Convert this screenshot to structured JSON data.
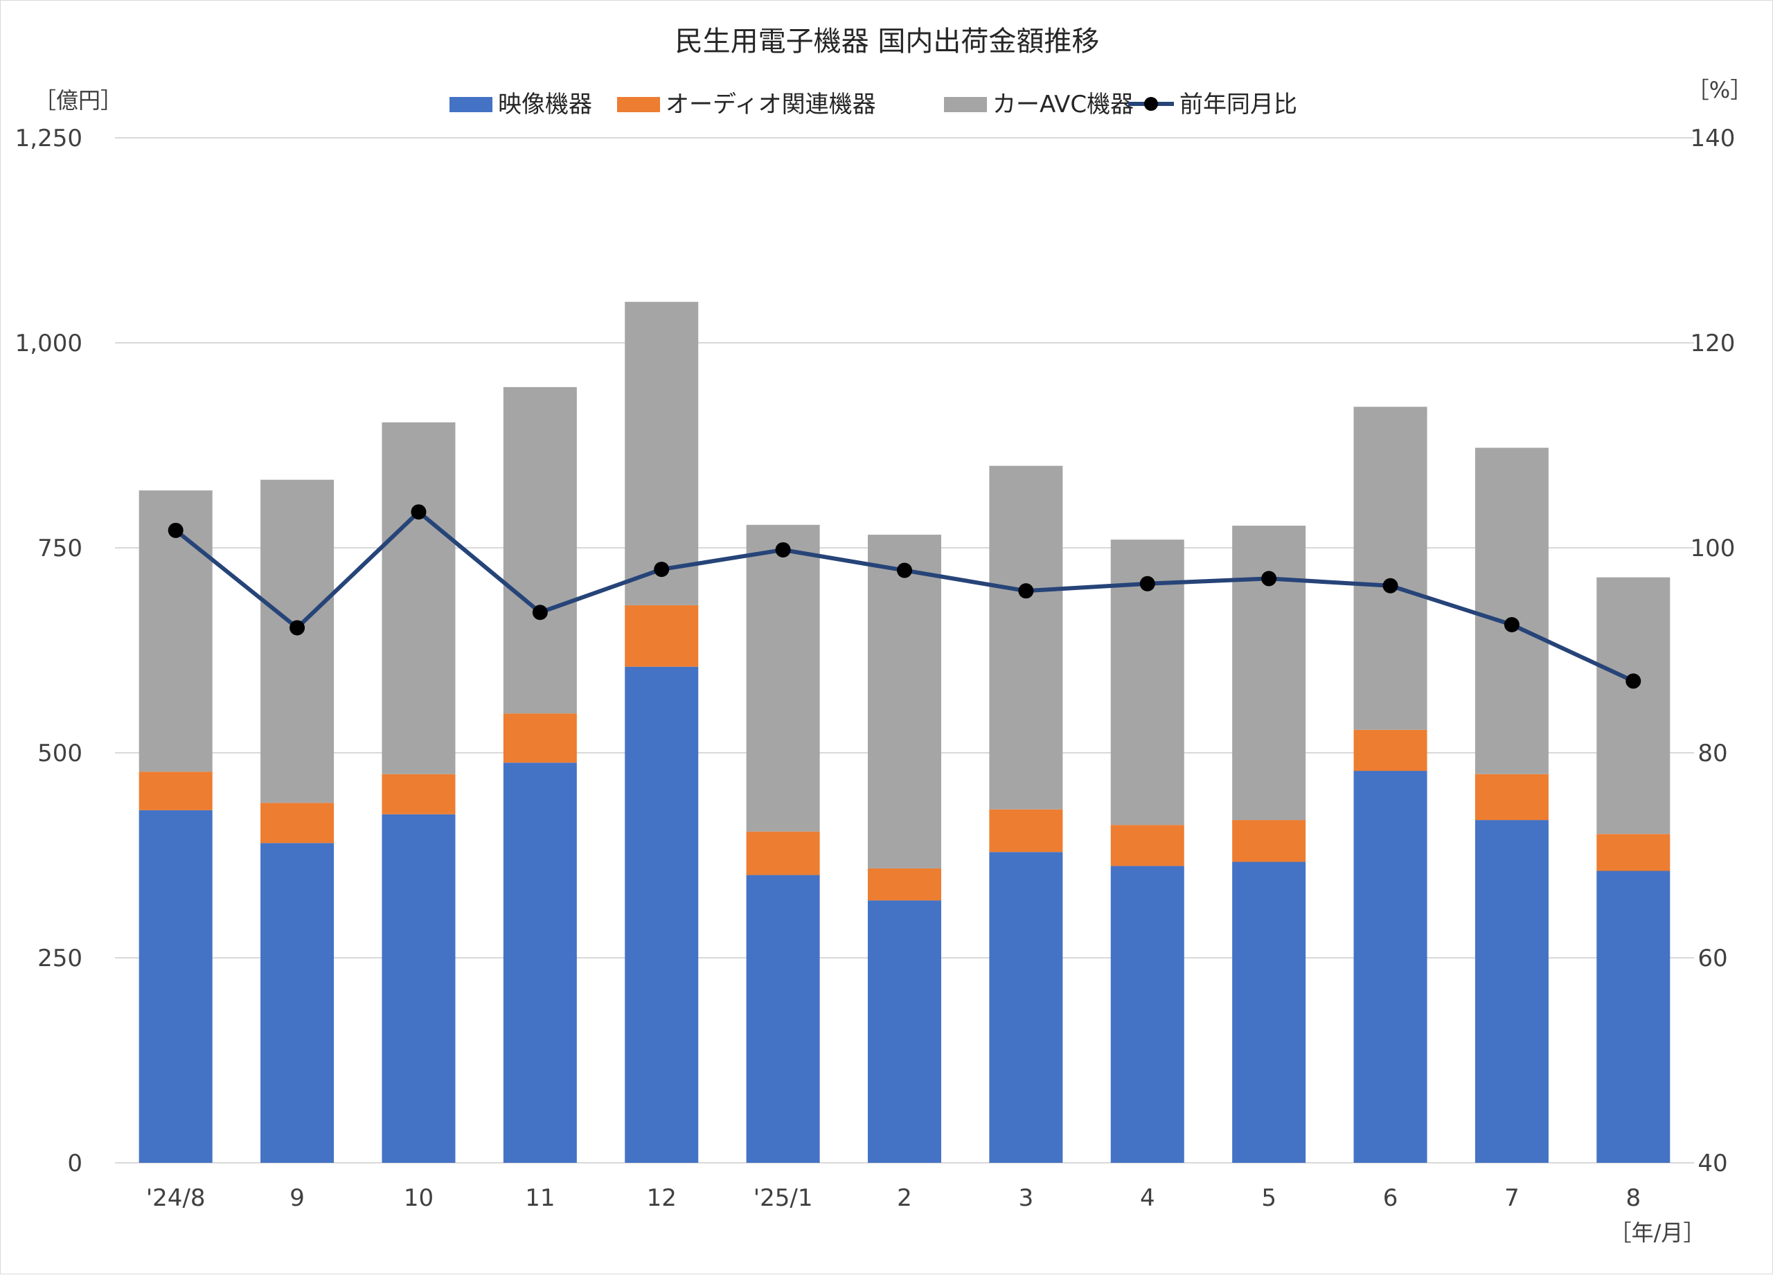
{
  "chart_data": {
    "type": "bar",
    "stacked": true,
    "title": "民生用電子機器 国内出荷金額推移",
    "y_unit_left": "［億円］",
    "y_unit_right": "［%］",
    "x_unit": "［年/月］",
    "categories": [
      "'24/8",
      "9",
      "10",
      "11",
      "12",
      "'25/1",
      "2",
      "3",
      "4",
      "5",
      "6",
      "7",
      "8"
    ],
    "series": [
      {
        "name": "映像機器",
        "type": "bar",
        "axis": "left",
        "color": "#4472C4",
        "values": [
          430,
          390,
          425,
          488,
          605,
          351,
          320,
          379,
          362,
          367,
          478,
          418,
          356
        ]
      },
      {
        "name": "オーディオ関連機器",
        "type": "bar",
        "axis": "left",
        "color": "#ED7D31",
        "values": [
          47,
          49,
          49,
          60,
          75,
          53,
          39,
          52,
          50,
          51,
          50,
          56,
          45
        ]
      },
      {
        "name": "カーAVC機器",
        "type": "bar",
        "axis": "left",
        "color": "#A5A5A5",
        "values": [
          343,
          394,
          429,
          398,
          370,
          374,
          407,
          419,
          348,
          359,
          394,
          398,
          313
        ]
      },
      {
        "name": "前年同月比",
        "type": "line",
        "axis": "right",
        "color": "#264478",
        "marker_color": "#000000",
        "values": [
          101.7,
          92.2,
          103.5,
          93.7,
          97.9,
          99.8,
          97.8,
          95.8,
          96.5,
          97.0,
          96.3,
          92.5,
          87.0
        ]
      }
    ],
    "y_left": {
      "min": 0,
      "max": 1250,
      "ticks": [
        "0",
        "250",
        "500",
        "750",
        "1,000",
        "1,250"
      ],
      "tick_values": [
        0,
        250,
        500,
        750,
        1000,
        1250
      ]
    },
    "y_right": {
      "min": 40,
      "max": 140,
      "ticks": [
        "40",
        "60",
        "80",
        "100",
        "120",
        "140"
      ],
      "tick_values": [
        40,
        60,
        80,
        100,
        120,
        140
      ]
    },
    "grid": true,
    "legend_position": "top"
  }
}
